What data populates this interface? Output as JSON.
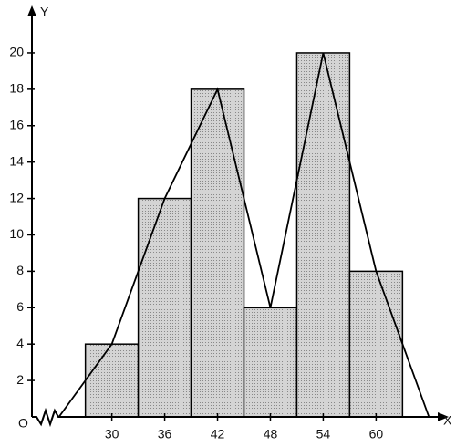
{
  "chart_data": {
    "type": "histogram",
    "bins": [
      27,
      33,
      39,
      45,
      51,
      57,
      63
    ],
    "values": [
      4,
      12,
      18,
      6,
      20,
      8
    ],
    "color": "#c8c8c8",
    "polygon": {
      "x": [
        24,
        30,
        36,
        42,
        48,
        54,
        60,
        66
      ],
      "values": [
        0,
        4,
        12,
        18,
        6,
        20,
        8,
        0
      ]
    },
    "xlim": [
      23,
      67
    ],
    "ylim": [
      0,
      21
    ],
    "xticks": [
      30,
      36,
      42,
      48,
      54,
      60
    ],
    "yticks": [
      2,
      4,
      6,
      8,
      10,
      12,
      14,
      16,
      18,
      20
    ],
    "x_label": "X",
    "y_label": "Y",
    "origin_label": "O"
  }
}
